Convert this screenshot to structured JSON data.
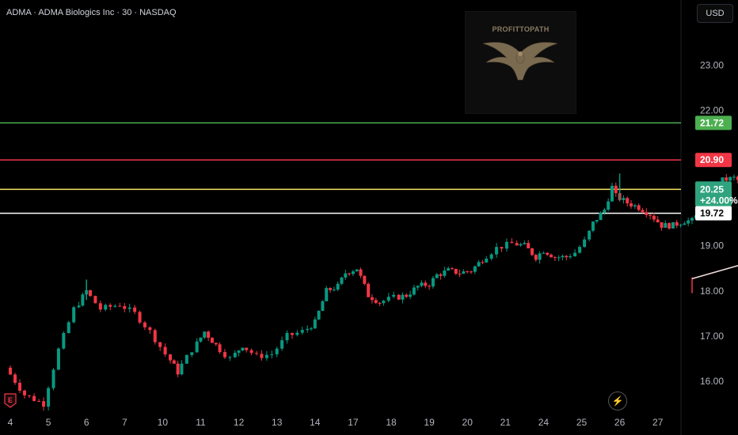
{
  "header": {
    "title": "ADMA · ADMA Biologics Inc · 30 · NASDAQ"
  },
  "currency_button": "USD",
  "watermark": {
    "text": "PROFITTOPATH",
    "icon": "eagle-icon"
  },
  "colors": {
    "up": "#089981",
    "down": "#f23645",
    "green_line": "#4caf50",
    "red_line": "#f23645",
    "yellow_line": "#f5e663",
    "white_line": "#ffffff"
  },
  "chart_data": {
    "type": "candlestick",
    "symbol": "ADMA",
    "interval": "30",
    "x_ticks": [
      "4",
      "5",
      "6",
      "7",
      "10",
      "11",
      "12",
      "13",
      "14",
      "17",
      "18",
      "19",
      "20",
      "21",
      "24",
      "25",
      "26",
      "27"
    ],
    "y_ticks": [
      "16.00",
      "17.00",
      "18.00",
      "19.00",
      "22.00",
      "23.00"
    ],
    "ylim": [
      15.45,
      24.4
    ],
    "price_levels": [
      {
        "name": "green-level",
        "value": 21.72,
        "label": "21.72",
        "color": "#4caf50"
      },
      {
        "name": "red-level",
        "value": 20.9,
        "label": "20.90",
        "color": "#f23645"
      },
      {
        "name": "current-price",
        "value": 20.25,
        "label": "20.25",
        "sub_label": "+24.00%",
        "color": "#f5e663"
      },
      {
        "name": "white-level",
        "value": 19.72,
        "label": "19.72",
        "color": "#ffffff"
      }
    ],
    "position_tool": {
      "entry": 20.25,
      "target": 21.72,
      "stop": 19.72,
      "x_start": 25.85,
      "x_end": 26.85
    },
    "trendlines": [
      {
        "name": "rising-support",
        "from": [
          17.9,
          18.27
        ],
        "to": [
          25.95,
          20.21
        ]
      },
      {
        "name": "falling-resistance",
        "from": [
          24.9,
          20.62
        ],
        "to": [
          25.95,
          20.21
        ]
      }
    ],
    "marker": {
      "x": 25.9,
      "y": 20.27
    },
    "anchors": [
      [
        0.0,
        16.3
      ],
      [
        0.5,
        15.7
      ],
      [
        1.0,
        15.5
      ],
      [
        1.4,
        16.7
      ],
      [
        1.8,
        17.6
      ],
      [
        2.1,
        18.0
      ],
      [
        2.5,
        17.6
      ],
      [
        3.0,
        17.7
      ],
      [
        3.4,
        17.5
      ],
      [
        3.8,
        17.1
      ],
      [
        4.2,
        16.6
      ],
      [
        4.5,
        16.2
      ],
      [
        4.9,
        16.7
      ],
      [
        5.2,
        17.1
      ],
      [
        5.5,
        16.8
      ],
      [
        5.9,
        16.5
      ],
      [
        6.2,
        16.8
      ],
      [
        6.6,
        16.55
      ],
      [
        7.0,
        16.6
      ],
      [
        7.4,
        17.0
      ],
      [
        7.8,
        17.1
      ],
      [
        8.1,
        17.3
      ],
      [
        8.4,
        18.0
      ],
      [
        8.7,
        18.1
      ],
      [
        8.9,
        18.4
      ],
      [
        9.2,
        18.5
      ],
      [
        9.5,
        17.9
      ],
      [
        9.8,
        17.75
      ],
      [
        10.2,
        17.85
      ],
      [
        10.5,
        17.9
      ],
      [
        10.8,
        18.1
      ],
      [
        11.1,
        18.15
      ],
      [
        11.3,
        18.35
      ],
      [
        11.6,
        18.45
      ],
      [
        11.9,
        18.4
      ],
      [
        12.2,
        18.45
      ],
      [
        12.5,
        18.7
      ],
      [
        12.9,
        18.95
      ],
      [
        13.3,
        19.05
      ],
      [
        13.6,
        19.0
      ],
      [
        13.9,
        18.75
      ],
      [
        14.1,
        18.9
      ],
      [
        14.4,
        18.75
      ],
      [
        14.7,
        18.75
      ],
      [
        14.95,
        18.85
      ],
      [
        15.2,
        19.1
      ],
      [
        15.4,
        19.5
      ],
      [
        15.7,
        19.8
      ],
      [
        15.9,
        20.3
      ],
      [
        16.0,
        20.1
      ],
      [
        16.3,
        19.95
      ],
      [
        16.6,
        19.85
      ],
      [
        16.9,
        19.7
      ],
      [
        17.2,
        19.45
      ],
      [
        17.5,
        19.45
      ],
      [
        17.8,
        19.55
      ],
      [
        18.0,
        19.55
      ],
      [
        18.3,
        19.85
      ],
      [
        18.5,
        20.05
      ],
      [
        18.8,
        20.45
      ],
      [
        19.1,
        20.5
      ],
      [
        19.4,
        20.35
      ],
      [
        19.7,
        20.35
      ],
      [
        20.0,
        20.25
      ],
      [
        20.3,
        20.2
      ],
      [
        20.5,
        20.3
      ],
      [
        20.7,
        20.15
      ],
      [
        20.9,
        20.21
      ],
      [
        21.0,
        20.25
      ]
    ]
  }
}
